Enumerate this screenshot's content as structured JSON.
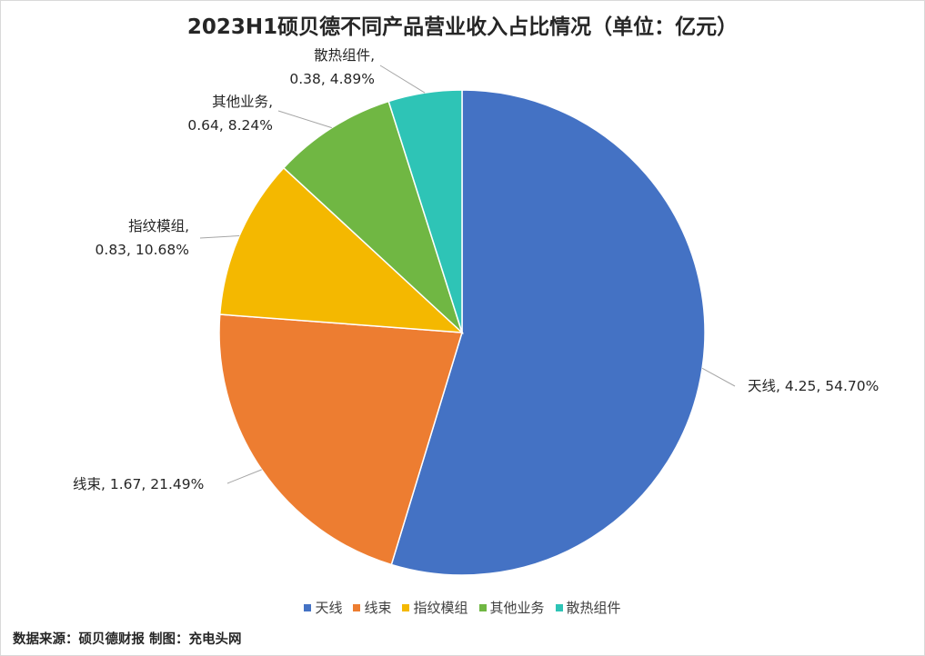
{
  "chart_data": {
    "type": "pie",
    "title": "2023H1硕贝德不同产品营业收入占比情况（单位：亿元）",
    "categories": [
      "天线",
      "线束",
      "指纹模组",
      "其他业务",
      "散热组件"
    ],
    "values": [
      4.25,
      1.67,
      0.83,
      0.64,
      0.38
    ],
    "percents": [
      "54.70%",
      "21.49%",
      "10.68%",
      "8.24%",
      "4.89%"
    ],
    "data_labels": [
      [
        "天线, 4.25, 54.70%"
      ],
      [
        "线束, 1.67, 21.49%"
      ],
      [
        "指纹模组,",
        "0.83, 10.68%"
      ],
      [
        "其他业务,",
        "0.64, 8.24%"
      ],
      [
        "散热组件,",
        "0.38, 4.89%"
      ]
    ],
    "colors": [
      "#4472C4",
      "#ED7D31",
      "#F4B800",
      "#70B743",
      "#2EC4B6"
    ],
    "legend_position": "bottom",
    "start_angle": "12 o'clock, clockwise"
  },
  "footer": {
    "source": "数据来源：硕贝德财报  制图：充电头网"
  }
}
